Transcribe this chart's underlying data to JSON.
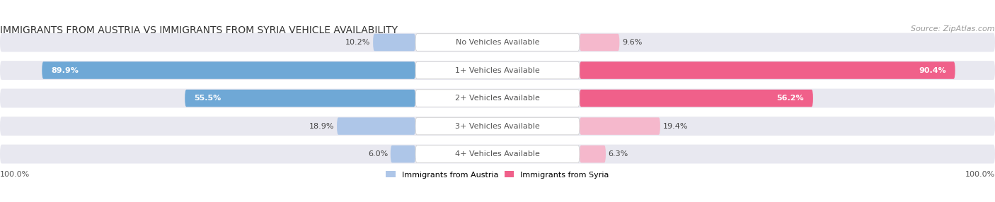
{
  "title": "IMMIGRANTS FROM AUSTRIA VS IMMIGRANTS FROM SYRIA VEHICLE AVAILABILITY",
  "source": "Source: ZipAtlas.com",
  "categories": [
    "No Vehicles Available",
    "1+ Vehicles Available",
    "2+ Vehicles Available",
    "3+ Vehicles Available",
    "4+ Vehicles Available"
  ],
  "austria_values": [
    10.2,
    89.9,
    55.5,
    18.9,
    6.0
  ],
  "syria_values": [
    9.6,
    90.4,
    56.2,
    19.4,
    6.3
  ],
  "austria_color_light": "#aec6e8",
  "austria_color_dark": "#6fa8d6",
  "syria_color_light": "#f5b8cc",
  "syria_color_dark": "#f0608a",
  "row_bg_color": "#e8e8f0",
  "max_value": 100.0,
  "legend_austria": "Immigrants from Austria",
  "legend_syria": "Immigrants from Syria",
  "figwidth": 14.06,
  "figheight": 2.86,
  "title_fontsize": 10,
  "label_fontsize": 8,
  "value_fontsize": 8,
  "source_fontsize": 8
}
